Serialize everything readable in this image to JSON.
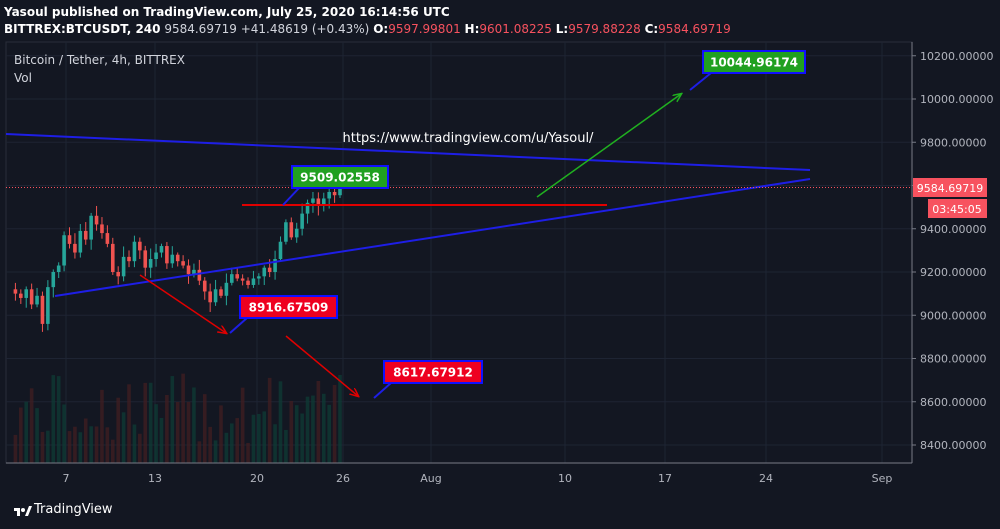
{
  "header": {
    "line1": "Yasoul published on TradingView.com, July 25, 2020 16:14:56 UTC",
    "symbol": "BITTREX:BTCUSDT, 240",
    "last": "9584.69719",
    "change": "+41.48619 (+0.43%)",
    "o_label": "O:",
    "o_val": "9597.99801",
    "h_label": "H:",
    "h_val": "9601.08225",
    "l_label": "L:",
    "l_val": "9579.88228",
    "c_label": "C:",
    "c_val": "9584.69719"
  },
  "pane": {
    "title": "Bitcoin / Tether, 4h, BITTREX",
    "vol_label": "Vol"
  },
  "footer": {
    "brand": "TradingView"
  },
  "colors": {
    "background": "#131722",
    "grid": "#1e2433",
    "up": "#26a69a",
    "down": "#ef5350",
    "trendline": "#1e1ee6",
    "price_tag": "#f7525f",
    "green_label": "#20a020",
    "red_label": "#ee0020"
  },
  "chart_data": {
    "type": "candlestick",
    "title": "Bitcoin / Tether, 4h, BITTREX",
    "x_ticks": [
      "7",
      "13",
      "20",
      "26",
      "Aug",
      "10",
      "17",
      "24",
      "Sep"
    ],
    "y_ticks": [
      "8400.00000",
      "8600.00000",
      "8800.00000",
      "9000.00000",
      "9200.00000",
      "9400.00000",
      "9600.00000",
      "9800.00000",
      "10000.00000",
      "10200.00000"
    ],
    "ylim": [
      8330,
      10260
    ],
    "last_price": "9584.69719",
    "countdown": "03:45:05",
    "price_path": [
      9120,
      9100,
      9080,
      9120,
      9050,
      9090,
      8960,
      9130,
      9200,
      9230,
      9370,
      9330,
      9290,
      9390,
      9350,
      9460,
      9420,
      9380,
      9330,
      9200,
      9180,
      9270,
      9250,
      9340,
      9300,
      9220,
      9260,
      9290,
      9320,
      9240,
      9280,
      9250,
      9230,
      9190,
      9210,
      9160,
      9110,
      9060,
      9120,
      9090,
      9150,
      9190,
      9170,
      9160,
      9140,
      9170,
      9180,
      9220,
      9200,
      9260,
      9340,
      9430,
      9360,
      9400,
      9470,
      9520,
      9540,
      9510,
      9540,
      9570,
      9555,
      9585
    ],
    "annotations": [
      {
        "text": "9509.02558",
        "color": "green"
      },
      {
        "text": "8916.67509",
        "color": "red"
      },
      {
        "text": "8617.67912",
        "color": "red"
      },
      {
        "text": "10044.96174",
        "color": "green"
      },
      {
        "text": "https://www.tradingview.com/u/Yasoul/",
        "color": "white"
      }
    ],
    "grid": true
  }
}
